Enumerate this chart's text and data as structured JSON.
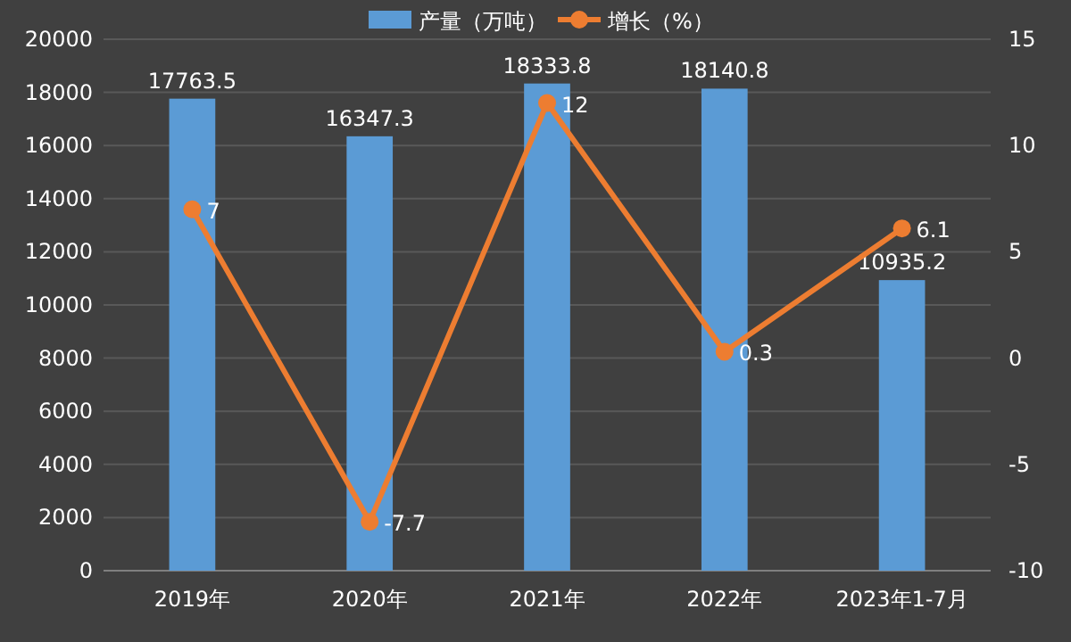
{
  "chart_data": {
    "type": "bar",
    "categories": [
      "2019年",
      "2020年",
      "2021年",
      "2022年",
      "2023年1-7月"
    ],
    "series": [
      {
        "name": "产量（万吨）",
        "color": "#5b9bd5",
        "values": [
          17763.5,
          16347.3,
          18333.8,
          18140.8,
          10935.2
        ]
      },
      {
        "name": "增长（%）",
        "type": "line",
        "axis": "y2",
        "color": "#ed7d31",
        "values": [
          7,
          -7.7,
          12,
          0.3,
          6.1
        ]
      }
    ],
    "ylim": [
      0,
      20000
    ],
    "yticks": [
      0,
      2000,
      4000,
      6000,
      8000,
      10000,
      12000,
      14000,
      16000,
      18000,
      20000
    ],
    "y2lim": [
      -10,
      15
    ],
    "y2ticks": [
      -10,
      -5,
      0,
      5,
      10,
      15
    ],
    "grid": "y",
    "legend": "top",
    "data_labels": true,
    "marker": "circle",
    "line_style": "solid"
  }
}
